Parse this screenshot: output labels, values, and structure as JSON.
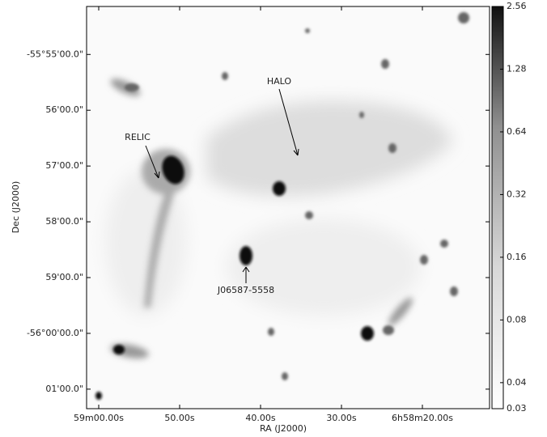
{
  "chart_data": {
    "type": "image",
    "xlabel": "RA (J2000)",
    "ylabel": "Dec (J2000)",
    "xlim": [
      25141.5,
      25091.7
    ],
    "xticks": [
      {
        "value": 25140,
        "label": "59m00.00s"
      },
      {
        "value": 25130,
        "label": "50.00s"
      },
      {
        "value": 25120,
        "label": "40.00s"
      },
      {
        "value": 25110,
        "label": "30.00s"
      },
      {
        "value": 25100,
        "label": "6h58m20.00s"
      }
    ],
    "ylim": [
      -3361.35,
      -3354.14
    ],
    "yticks": [
      {
        "value": -3355,
        "label": "-55°55'00.0\""
      },
      {
        "value": -3356,
        "label": "56'00.0\""
      },
      {
        "value": -3357,
        "label": "57'00.0\""
      },
      {
        "value": -3358,
        "label": "58'00.0\""
      },
      {
        "value": -3359,
        "label": "59'00.0\""
      },
      {
        "value": -3360,
        "label": "-56°00'00.0\""
      },
      {
        "value": -3361,
        "label": "01'00.0\""
      }
    ],
    "annotations": [
      "HALO",
      "RELIC",
      "J06587-5558"
    ],
    "colorbar": {
      "lim": [
        0.03,
        2.56
      ],
      "log": true,
      "ticks": [
        0.03,
        0.04,
        0.08,
        0.16,
        0.32,
        0.64,
        1.28,
        2.56
      ]
    }
  }
}
